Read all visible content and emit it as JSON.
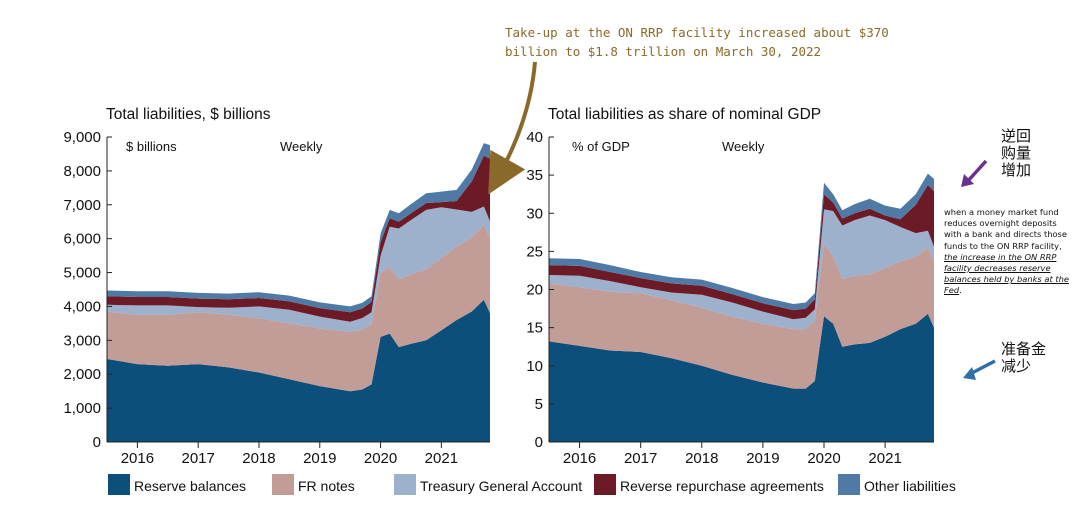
{
  "callout": {
    "text": "Take-up at the ON RRP facility increased about $370 billion to $1.8 trillion on March 30, 2022",
    "color": "#8a6a2b"
  },
  "side": {
    "up_label": "逆回购量增加",
    "down_label": "准备金减少",
    "note_plain": "when a money market fund reduces overnight deposits with a bank and directs those funds to the ON RRP facility,",
    "note_em": "the increase in the ON RRP facility decreases reserve balances held by banks at the Fed",
    "note_end": ".",
    "up_color": "#6a2f8f",
    "down_color": "#2f6faa"
  },
  "colors": {
    "reserve": "#0b4f7a",
    "fr": "#c29c96",
    "tga": "#9db0cc",
    "rrp": "#6b1a26",
    "other": "#4f7aa5"
  },
  "legend": [
    {
      "key": "reserve",
      "label": "Reserve balances"
    },
    {
      "key": "fr",
      "label": "FR notes"
    },
    {
      "key": "tga",
      "label": "Treasury General Account"
    },
    {
      "key": "rrp",
      "label": "Reverse repurchase agreements"
    },
    {
      "key": "other",
      "label": "Other liabilities"
    }
  ],
  "chart_data": [
    {
      "type": "area",
      "stacked": true,
      "title": "Total liabilities, $ billions",
      "unit_label": "$ billions",
      "frequency_label": "Weekly",
      "ylim": [
        0,
        9000
      ],
      "yticks": [
        "0",
        "1,000",
        "2,000",
        "3,000",
        "4,000",
        "5,000",
        "6,000",
        "7,000",
        "8,000",
        "9,000"
      ],
      "xlim": [
        2015.5,
        2021.8
      ],
      "xticks": [
        "2016",
        "2017",
        "2018",
        "2019",
        "2020",
        "2021"
      ],
      "x": [
        2015.5,
        2016.0,
        2016.5,
        2017.0,
        2017.5,
        2018.0,
        2018.5,
        2019.0,
        2019.5,
        2019.7,
        2019.85,
        2020.0,
        2020.15,
        2020.3,
        2020.5,
        2020.75,
        2021.0,
        2021.25,
        2021.5,
        2021.7,
        2021.8
      ],
      "series": [
        {
          "key": "reserve",
          "name": "Reserve balances",
          "values": [
            2450,
            2300,
            2250,
            2300,
            2200,
            2050,
            1850,
            1650,
            1500,
            1550,
            1700,
            3100,
            3200,
            2800,
            2900,
            3000,
            3300,
            3600,
            3850,
            4200,
            3800
          ]
        },
        {
          "key": "fr",
          "name": "FR notes",
          "values": [
            1400,
            1450,
            1500,
            1530,
            1560,
            1600,
            1650,
            1700,
            1750,
            1760,
            1780,
            1900,
            1950,
            2000,
            2050,
            2100,
            2130,
            2160,
            2190,
            2200,
            2210
          ]
        },
        {
          "key": "tga",
          "name": "Treasury General Account",
          "values": [
            200,
            280,
            280,
            150,
            200,
            350,
            400,
            350,
            300,
            350,
            350,
            500,
            1200,
            1500,
            1600,
            1750,
            1500,
            1100,
            750,
            550,
            500
          ]
        },
        {
          "key": "rrp",
          "name": "Reverse repurchase agreements",
          "values": [
            250,
            250,
            250,
            250,
            250,
            250,
            250,
            250,
            280,
            280,
            300,
            400,
            250,
            200,
            200,
            200,
            150,
            250,
            900,
            1500,
            1850
          ]
        },
        {
          "key": "other",
          "name": "Other liabilities",
          "values": [
            170,
            170,
            170,
            170,
            170,
            170,
            170,
            170,
            170,
            170,
            170,
            250,
            250,
            250,
            270,
            290,
            310,
            330,
            350,
            370,
            400
          ]
        }
      ]
    },
    {
      "type": "area",
      "stacked": true,
      "title": "Total liabilities as share of nominal GDP",
      "unit_label": "% of GDP",
      "frequency_label": "Weekly",
      "ylim": [
        0,
        40
      ],
      "yticks": [
        "0",
        "5",
        "10",
        "15",
        "20",
        "25",
        "30",
        "35",
        "40"
      ],
      "xlim": [
        2015.5,
        2021.8
      ],
      "xticks": [
        "2016",
        "2017",
        "2018",
        "2019",
        "2020",
        "2021"
      ],
      "x": [
        2015.5,
        2016.0,
        2016.5,
        2017.0,
        2017.5,
        2018.0,
        2018.5,
        2019.0,
        2019.5,
        2019.7,
        2019.85,
        2020.0,
        2020.15,
        2020.3,
        2020.5,
        2020.75,
        2021.0,
        2021.25,
        2021.5,
        2021.7,
        2021.8
      ],
      "series": [
        {
          "key": "reserve",
          "name": "Reserve balances",
          "values": [
            13.2,
            12.6,
            12.0,
            11.8,
            11.0,
            10.0,
            8.8,
            7.8,
            7.0,
            7.0,
            8.0,
            16.5,
            15.5,
            12.5,
            12.8,
            13.0,
            13.8,
            14.8,
            15.5,
            16.8,
            15.0
          ]
        },
        {
          "key": "fr",
          "name": "FR notes",
          "values": [
            7.6,
            7.7,
            7.7,
            7.7,
            7.6,
            7.6,
            7.6,
            7.7,
            7.8,
            7.8,
            7.9,
            9.5,
            8.8,
            8.9,
            9.0,
            9.0,
            9.0,
            8.9,
            8.8,
            8.7,
            8.6
          ]
        },
        {
          "key": "tga",
          "name": "Treasury General Account",
          "values": [
            1.1,
            1.5,
            1.4,
            0.8,
            1.0,
            1.7,
            1.9,
            1.6,
            1.3,
            1.5,
            1.5,
            4.5,
            6.0,
            7.0,
            7.3,
            7.7,
            6.3,
            4.5,
            3.1,
            2.2,
            2.0
          ]
        },
        {
          "key": "rrp",
          "name": "Reverse repurchase agreements",
          "values": [
            1.3,
            1.3,
            1.2,
            1.2,
            1.2,
            1.2,
            1.1,
            1.1,
            1.2,
            1.2,
            1.3,
            2.0,
            1.1,
            0.9,
            0.9,
            0.9,
            0.6,
            1.0,
            3.7,
            6.0,
            7.3
          ]
        },
        {
          "key": "other",
          "name": "Other liabilities",
          "values": [
            0.9,
            0.9,
            0.9,
            0.8,
            0.8,
            0.8,
            0.8,
            0.8,
            0.8,
            0.8,
            0.8,
            1.5,
            1.1,
            1.1,
            1.2,
            1.3,
            1.3,
            1.4,
            1.4,
            1.5,
            1.6
          ]
        }
      ]
    }
  ]
}
